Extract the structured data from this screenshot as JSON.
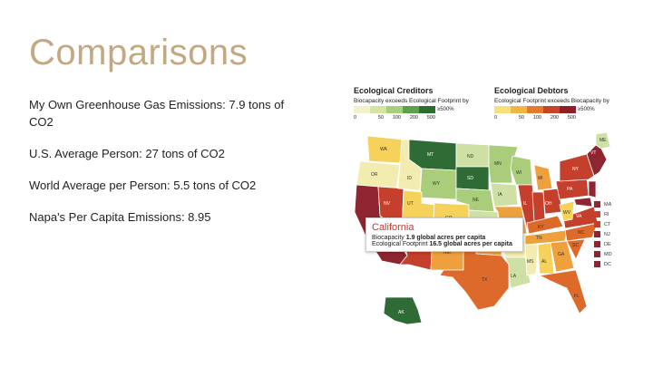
{
  "slide": {
    "title": "Comparisons",
    "bullets": [
      "My Own Greenhouse Gas Emissions: 7.9 tons of CO2",
      "U.S. Average Person: 27 tons of CO2",
      "World Average per Person: 5.5 tons of CO2",
      "Napa's Per Capita Emissions: 8.95"
    ]
  },
  "map": {
    "creditors": {
      "title": "Ecological Creditors",
      "subtitle": "Biocapacity exceeds Ecological Footprint by",
      "ticks": [
        "0",
        "50",
        "100",
        "200",
        "500"
      ],
      "end_label": "≥500%",
      "colors": [
        "#f3f1c9",
        "#d4e4a4",
        "#a7cf7b",
        "#5ca24c",
        "#2c6e2e"
      ]
    },
    "debtors": {
      "title": "Ecological Debtors",
      "subtitle": "Ecological Footprint exceeds Biocapacity by",
      "ticks": [
        "0",
        "50",
        "100",
        "200",
        "500"
      ],
      "end_label": "≥500%",
      "colors": [
        "#f9e07a",
        "#f3b443",
        "#e37b2e",
        "#c6442a",
        "#8e1f2a"
      ]
    },
    "tooltip": {
      "state": "California",
      "line1_prefix": "Biocapacity",
      "line1_value": "1.9 global acres per capita",
      "line2_prefix": "Ecological Footprint",
      "line2_value": "16.5 global acres per capita"
    },
    "state_labels": [
      "WA",
      "MT",
      "ND",
      "MN",
      "OR",
      "ID",
      "SD",
      "WI",
      "MI",
      "WY",
      "NE",
      "IA",
      "NV",
      "UT",
      "CO",
      "KS",
      "IL",
      "OH",
      "PA",
      "NY",
      "ME",
      "VT",
      "AZ",
      "NM",
      "OK",
      "MO",
      "KY",
      "WV",
      "VA",
      "TN",
      "NC",
      "SC",
      "TX",
      "AR",
      "MS",
      "AL",
      "GA",
      "LA",
      "FL",
      "AK"
    ],
    "side_legend": [
      "MA",
      "RI",
      "CT",
      "NJ",
      "DE",
      "MD",
      "DC"
    ],
    "colors": {
      "deep_green": "#2f6b34",
      "green": "#5c9c45",
      "light_green": "#a9cd7a",
      "pale_green": "#cfe0a4",
      "pale_yellow": "#f2ecb0",
      "yellow": "#f6d25a",
      "orange": "#eea03d",
      "dark_orange": "#dd6a2b",
      "red": "#c43f2c",
      "dark_red": "#8e2530"
    }
  }
}
